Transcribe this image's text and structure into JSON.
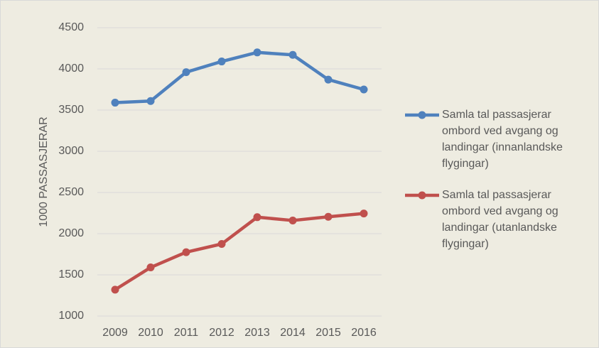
{
  "chart_data": {
    "type": "line",
    "y_label": "1000 PASSASJERAR",
    "categories": [
      "2009",
      "2010",
      "2011",
      "2012",
      "2013",
      "2014",
      "2015",
      "2016"
    ],
    "series": [
      {
        "name": "Samla tal passasjerar ombord ved avgang og landingar (innanlandske flygingar)",
        "color": "#4f81bd",
        "values": [
          3590,
          3610,
          3960,
          4090,
          4200,
          4170,
          3870,
          3750
        ]
      },
      {
        "name": "Samla tal passasjerar ombord ved avgang og landingar (utanlandske flygingar)",
        "color": "#c0504d",
        "values": [
          1320,
          1590,
          1775,
          1875,
          2200,
          2160,
          2205,
          2245
        ]
      }
    ],
    "ylim": [
      1000,
      4500
    ],
    "yticks": [
      1000,
      1500,
      2000,
      2500,
      3000,
      3500,
      4000,
      4500
    ],
    "grid": true,
    "legend": "right"
  }
}
